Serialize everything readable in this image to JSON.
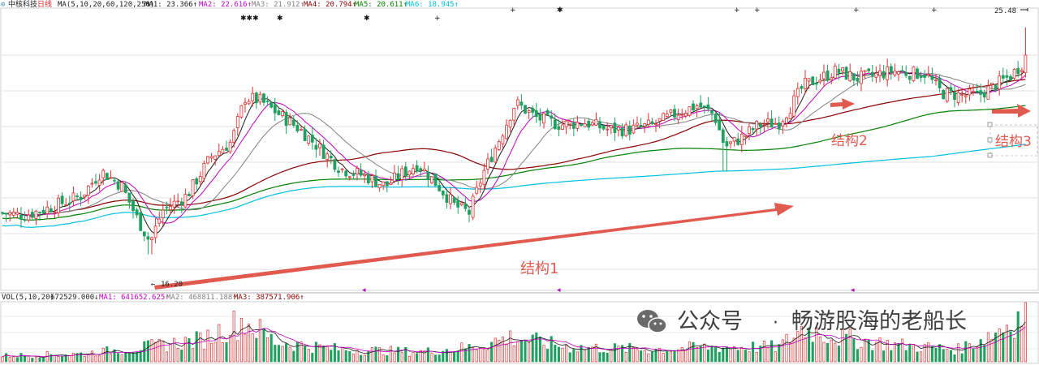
{
  "header": {
    "icon_glyph": "⊙",
    "stock_name": "中核科技",
    "period": "日线",
    "ma_param": "MA(5,10,20,60,120,250)",
    "ma_items": [
      {
        "label": "MA1: 23.366↑",
        "color": "#1a1a1a"
      },
      {
        "label": "MA2: 22.616↑",
        "color": "#c000c0"
      },
      {
        "label": "MA3: 21.912↑",
        "color": "#808080"
      },
      {
        "label": "MA4: 20.794↑",
        "color": "#8b0000"
      },
      {
        "label": "MA5: 20.611↑",
        "color": "#008000"
      },
      {
        "label": "MA6: 18.945↑",
        "color": "#00c0e0"
      }
    ]
  },
  "price_labels": {
    "high": "25.48",
    "low": "16.20"
  },
  "annotations": {
    "s1": "结构1",
    "s2": "结构2",
    "s3": "结构3"
  },
  "volume_header": {
    "param": "VOL(5,10,20)",
    "vol": "672529.000↓",
    "ma1": "MA1: 641652.625↑",
    "ma2": "MA2: 468811.188↑",
    "ma3": "MA3: 387571.906↑"
  },
  "watermark": {
    "account": "公众号",
    "dot": "·",
    "name": "畅游股海的老船长"
  },
  "colors": {
    "up": "#e03030",
    "down": "#20a060",
    "ma1": "#1a1a1a",
    "ma2": "#c000c0",
    "ma3": "#808080",
    "ma4": "#8b0000",
    "ma5": "#008000",
    "ma6": "#00c0e0",
    "arrow": "#e05a50",
    "grid": "#d8d8d8"
  },
  "chart_data": {
    "type": "candlestick",
    "y_visible": {
      "high": 25.48,
      "low": 16.2
    },
    "price_anchors": [
      [
        0,
        17.9
      ],
      [
        30,
        17.8
      ],
      [
        60,
        18.1
      ],
      [
        100,
        18.6
      ],
      [
        125,
        19.6
      ],
      [
        150,
        19.0
      ],
      [
        170,
        17.6
      ],
      [
        185,
        16.7
      ],
      [
        200,
        18.0
      ],
      [
        230,
        18.6
      ],
      [
        260,
        20.2
      ],
      [
        285,
        20.8
      ],
      [
        302,
        22.6
      ],
      [
        320,
        22.5
      ],
      [
        345,
        21.9
      ],
      [
        370,
        21.3
      ],
      [
        395,
        20.5
      ],
      [
        420,
        19.7
      ],
      [
        450,
        19.4
      ],
      [
        475,
        19.0
      ],
      [
        495,
        19.5
      ],
      [
        515,
        19.9
      ],
      [
        540,
        19.0
      ],
      [
        560,
        18.2
      ],
      [
        578,
        17.9
      ],
      [
        595,
        19.5
      ],
      [
        615,
        20.9
      ],
      [
        635,
        22.4
      ],
      [
        660,
        21.8
      ],
      [
        690,
        21.5
      ],
      [
        720,
        21.6
      ],
      [
        750,
        21.3
      ],
      [
        775,
        21.3
      ],
      [
        805,
        21.5
      ],
      [
        835,
        22.0
      ],
      [
        860,
        22.3
      ],
      [
        880,
        21.9
      ],
      [
        893,
        20.6
      ],
      [
        910,
        20.9
      ],
      [
        935,
        21.5
      ],
      [
        960,
        21.6
      ],
      [
        975,
        22.3
      ],
      [
        990,
        23.1
      ],
      [
        1010,
        23.4
      ],
      [
        1030,
        23.7
      ],
      [
        1055,
        23.4
      ],
      [
        1075,
        23.5
      ],
      [
        1100,
        23.7
      ],
      [
        1125,
        23.6
      ],
      [
        1140,
        23.6
      ],
      [
        1160,
        22.8
      ],
      [
        1185,
        22.7
      ],
      [
        1205,
        22.7
      ],
      [
        1225,
        23.1
      ],
      [
        1245,
        23.5
      ],
      [
        1262,
        24.1
      ],
      [
        1270,
        25.2
      ]
    ],
    "volume_anchors": [
      [
        0,
        0.12
      ],
      [
        100,
        0.16
      ],
      [
        180,
        0.3
      ],
      [
        250,
        0.45
      ],
      [
        300,
        0.85
      ],
      [
        340,
        0.4
      ],
      [
        420,
        0.25
      ],
      [
        520,
        0.2
      ],
      [
        580,
        0.3
      ],
      [
        630,
        0.5
      ],
      [
        700,
        0.3
      ],
      [
        800,
        0.25
      ],
      [
        880,
        0.3
      ],
      [
        960,
        0.3
      ],
      [
        990,
        0.7
      ],
      [
        1030,
        0.5
      ],
      [
        1100,
        0.35
      ],
      [
        1180,
        0.25
      ],
      [
        1220,
        0.55
      ],
      [
        1262,
        1.0
      ],
      [
        1270,
        0.8
      ]
    ]
  }
}
